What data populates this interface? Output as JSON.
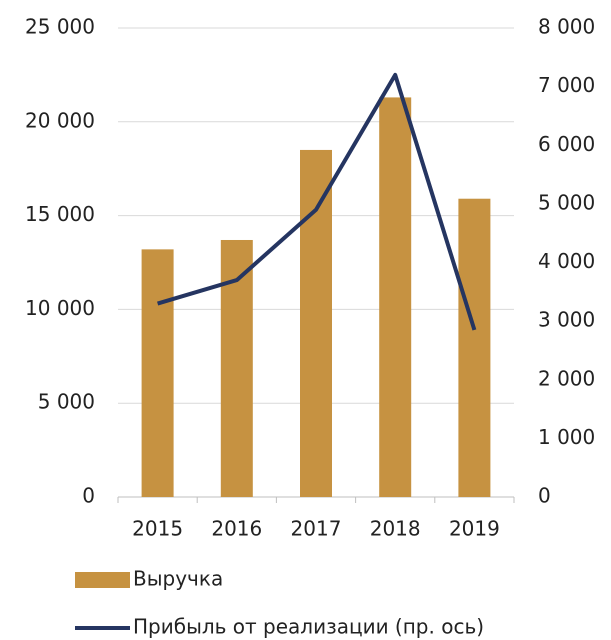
{
  "chart_data": {
    "type": "bar-line",
    "categories": [
      "2015",
      "2016",
      "2017",
      "2018",
      "2019"
    ],
    "series": [
      {
        "name": "Выручка",
        "type": "bar",
        "color": "#c69241",
        "values": [
          13200,
          13700,
          18500,
          21300,
          15900
        ]
      },
      {
        "name": "Прибыль от реализации (пр. ось)",
        "type": "line",
        "axis": "y2",
        "color": "#253561",
        "values": [
          3300,
          3700,
          4900,
          7200,
          2850
        ]
      }
    ],
    "ylim": [
      0,
      25000
    ],
    "yticks": [
      0,
      {
        "value": 5000,
        "label": "5 000"
      },
      {
        "value": 10000,
        "label": "10 000"
      },
      {
        "value": 15000,
        "label": "15 000"
      },
      {
        "value": 20000,
        "label": "20 000"
      },
      {
        "value": 25000,
        "label": "25 000"
      }
    ],
    "y2lim": [
      0,
      8000
    ],
    "y2ticks": [
      0,
      {
        "value": 1000,
        "label": "1 000"
      },
      {
        "value": 2000,
        "label": "2 000"
      },
      {
        "value": 3000,
        "label": "3 000"
      },
      {
        "value": 4000,
        "label": "4 000"
      },
      {
        "value": 5000,
        "label": "5 000"
      },
      {
        "value": 6000,
        "label": "6 000"
      },
      {
        "value": 7000,
        "label": "7 000"
      },
      {
        "value": 8000,
        "label": "8 000"
      }
    ],
    "grid": true,
    "legend": "bottom"
  }
}
